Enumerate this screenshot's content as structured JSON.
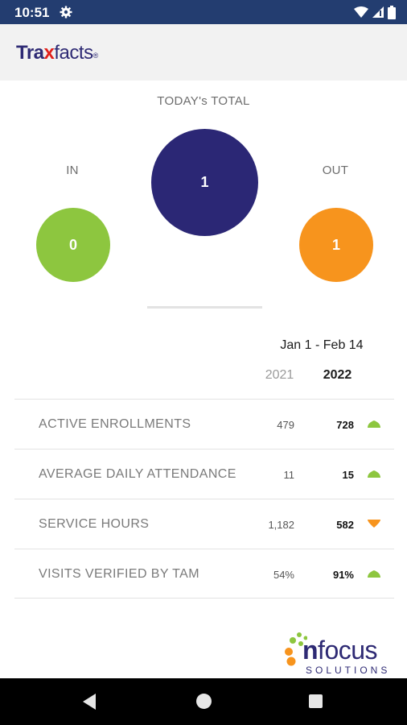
{
  "status_bar": {
    "time": "10:51",
    "bg_color": "#233d70"
  },
  "header": {
    "logo_part1": "Tra",
    "logo_x": "x",
    "logo_part2": "facts",
    "logo_reg": "®"
  },
  "totals": {
    "title": "TODAY's TOTAL",
    "total_value": "1",
    "in_label": "IN",
    "in_value": "0",
    "out_label": "OUT",
    "out_value": "1",
    "colors": {
      "total": "#2b2775",
      "in": "#8dc63f",
      "out": "#f7941d"
    }
  },
  "comparison": {
    "date_range": "Jan 1 - Feb 14",
    "year_prev": "2021",
    "year_curr": "2022",
    "rows": [
      {
        "label": "ACTIVE ENROLLMENTS",
        "prev": "479",
        "curr": "728",
        "trend": "up"
      },
      {
        "label": "AVERAGE DAILY ATTENDANCE",
        "prev": "11",
        "curr": "15",
        "trend": "up"
      },
      {
        "label": "SERVICE HOURS",
        "prev": "1,182",
        "curr": "582",
        "trend": "down"
      },
      {
        "label": "VISITS VERIFIED BY TAM",
        "prev": "54%",
        "curr": "91%",
        "trend": "up"
      }
    ],
    "trend_colors": {
      "up": "#8dc63f",
      "down": "#f7941d"
    }
  },
  "footer_logo": {
    "n": "n",
    "word": "focus",
    "sub": "SOLUTIONS"
  }
}
